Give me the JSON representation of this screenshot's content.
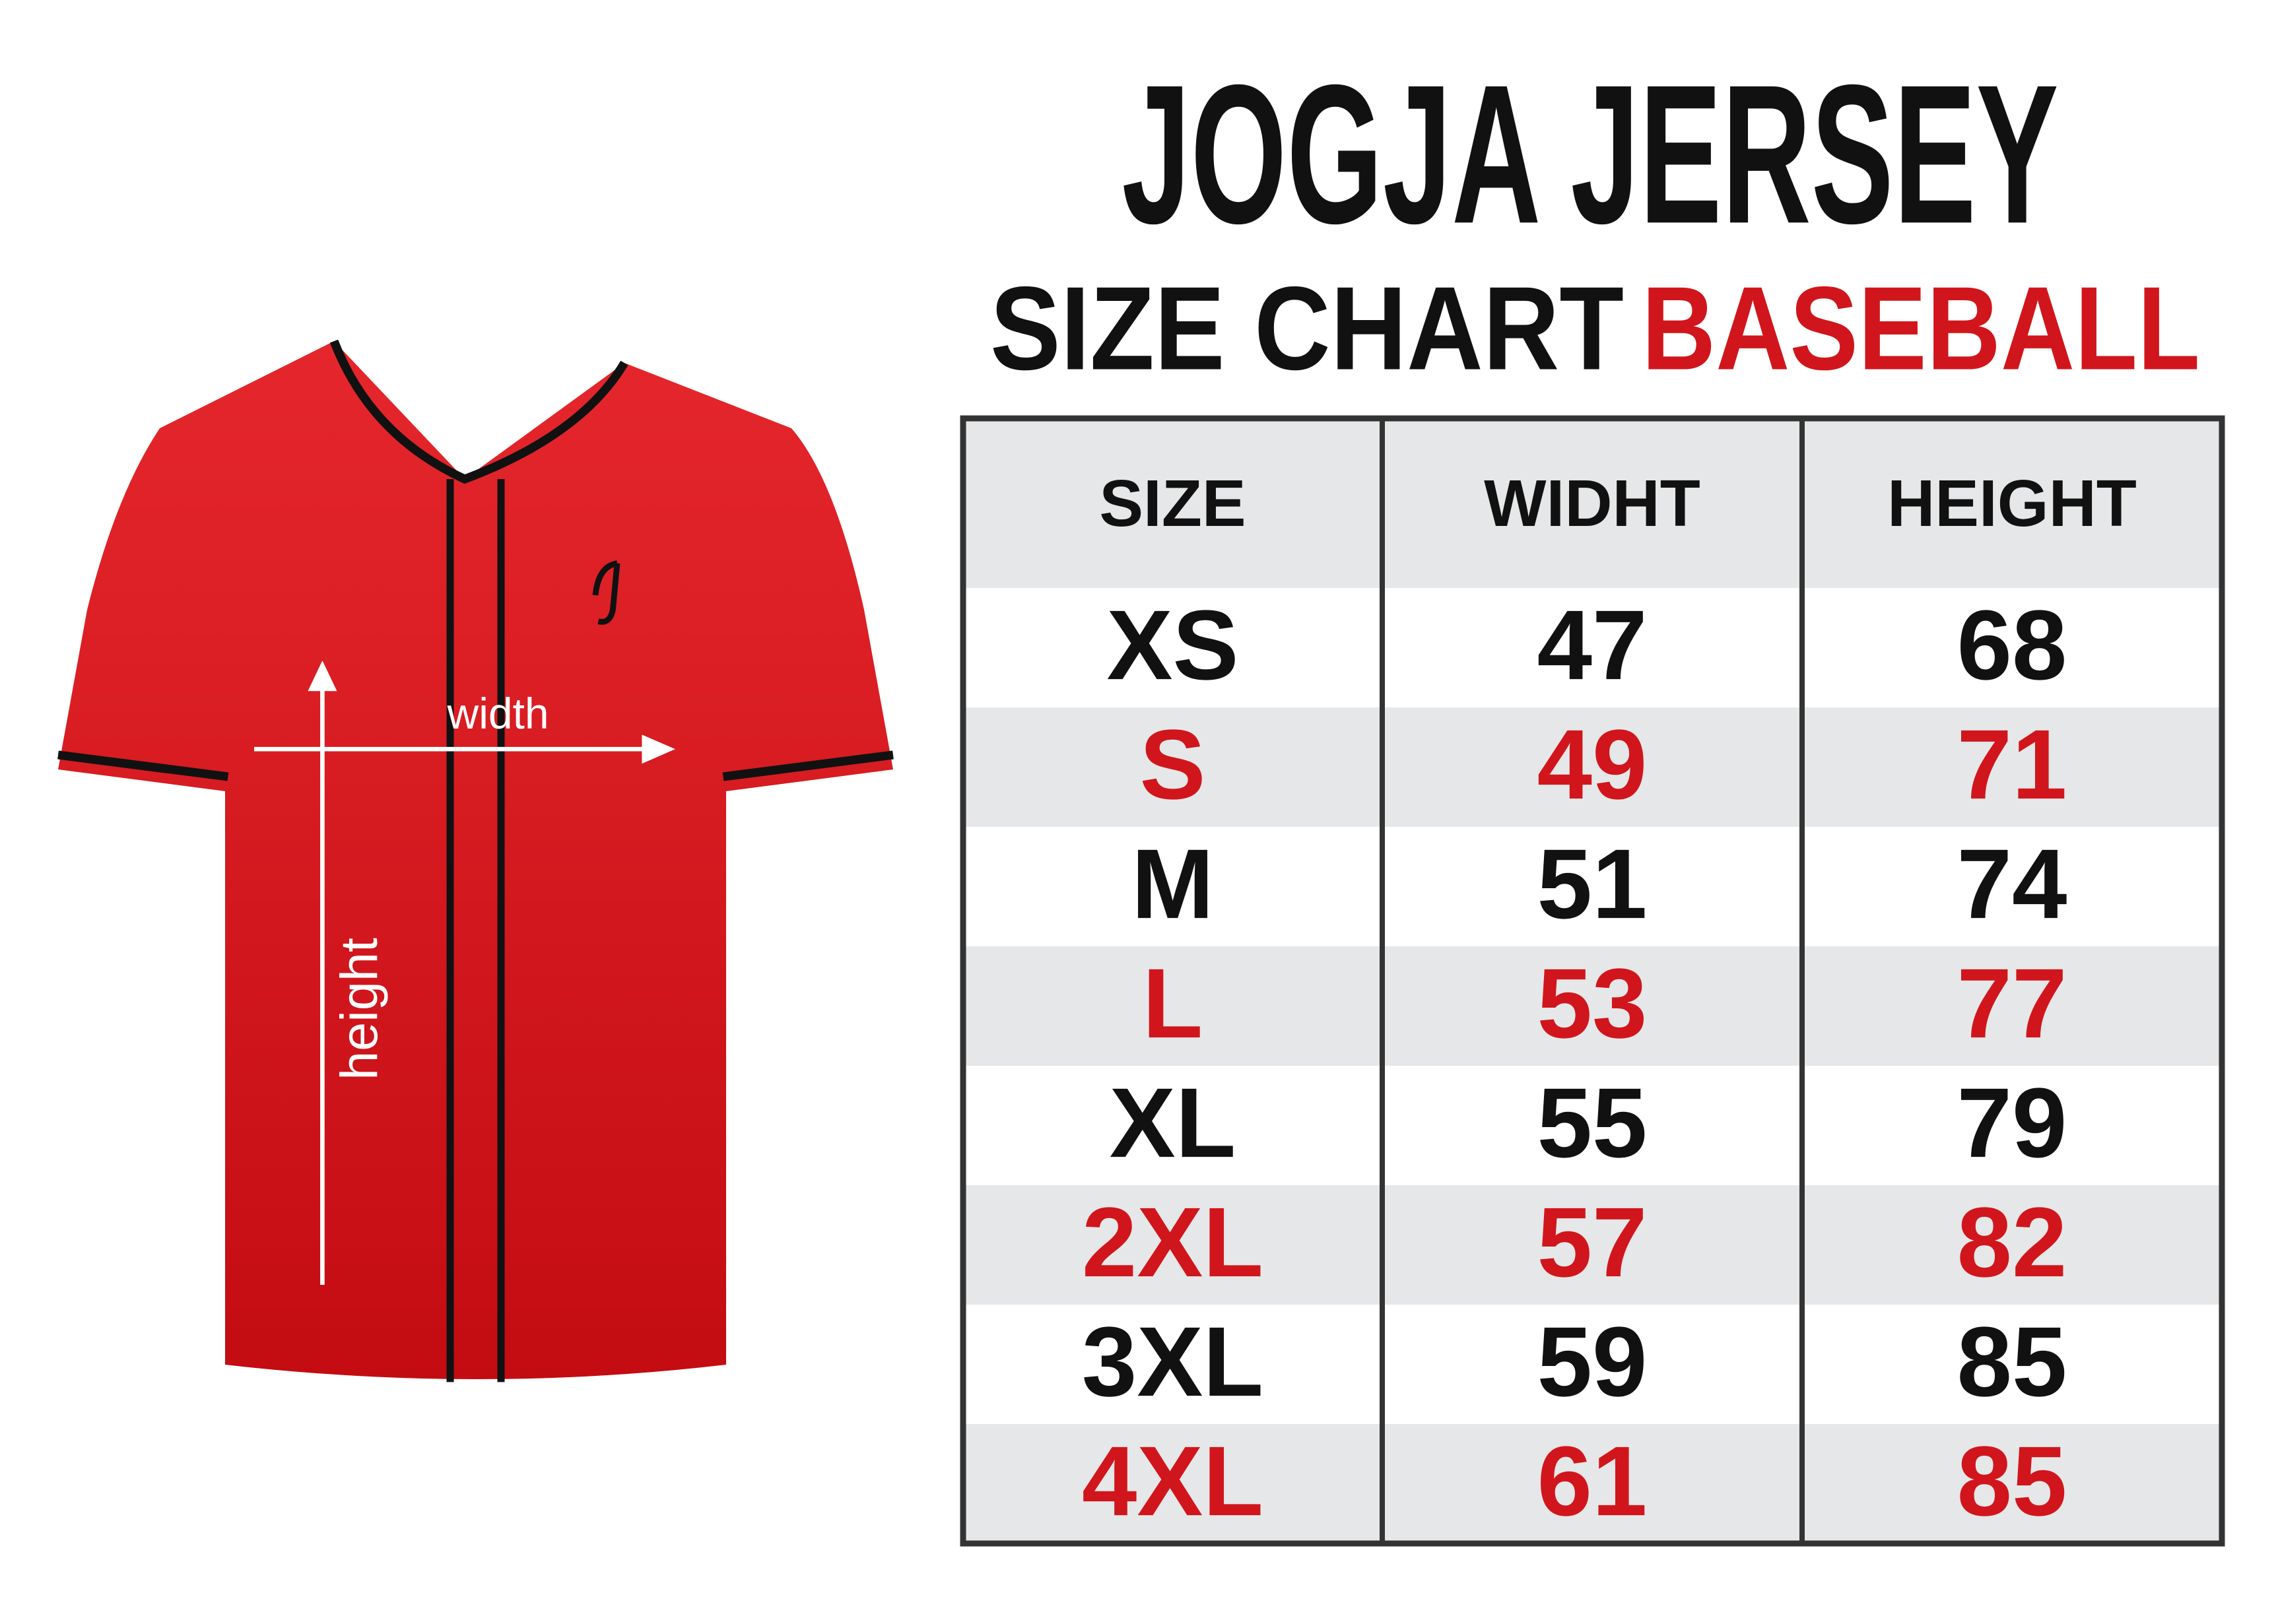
{
  "header": {
    "title": "JOGJA JERSEY",
    "subtitle": "SIZE CHART",
    "highlight": "BASEBALL"
  },
  "diagram": {
    "width_label": "width",
    "height_label": "height"
  },
  "table": {
    "columns": [
      "SIZE",
      "WIDHT",
      "HEIGHT"
    ],
    "rows": [
      [
        "XS",
        47,
        68
      ],
      [
        "S",
        49,
        71
      ],
      [
        "M",
        51,
        74
      ],
      [
        "L",
        53,
        77
      ],
      [
        "XL",
        55,
        79
      ],
      [
        "2XL",
        57,
        82
      ],
      [
        "3XL",
        59,
        85
      ],
      [
        "4XL",
        61,
        85
      ]
    ]
  }
}
